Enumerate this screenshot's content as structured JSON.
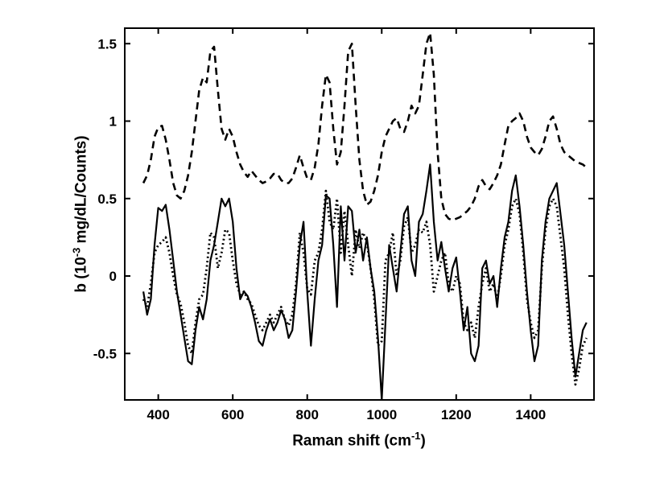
{
  "figure": {
    "background": "#ffffff",
    "xlabel": {
      "main": "Raman shift (cm",
      "sup": "-1",
      "end": ")"
    },
    "ylabel": {
      "main": "b (10",
      "sup": "-3",
      "end": " mg/dL/Counts)"
    }
  },
  "chart_data": {
    "type": "line",
    "title": "",
    "xlabel": "Raman shift (cm^-1)",
    "ylabel": "b (10^-3 mg/dL/Counts)",
    "xlim": [
      310,
      1570
    ],
    "ylim": [
      -0.8,
      1.6
    ],
    "xticks": [
      400,
      600,
      800,
      1000,
      1200,
      1400
    ],
    "xtick_labels": [
      "400",
      "600",
      "800",
      "1000",
      "1200",
      "1400"
    ],
    "yticks": [
      -0.5,
      0,
      0.5,
      1,
      1.5
    ],
    "ytick_labels": [
      "-0.5",
      "0",
      "0.5",
      "1",
      "1.5"
    ],
    "grid": false,
    "legend": "none",
    "line_color": "#000000",
    "x": [
      360,
      370,
      380,
      390,
      400,
      410,
      420,
      430,
      440,
      450,
      460,
      470,
      480,
      490,
      500,
      510,
      520,
      530,
      540,
      550,
      560,
      570,
      580,
      590,
      600,
      610,
      620,
      630,
      640,
      650,
      660,
      670,
      680,
      690,
      700,
      710,
      720,
      730,
      740,
      750,
      760,
      770,
      780,
      790,
      800,
      810,
      820,
      830,
      840,
      850,
      860,
      870,
      880,
      890,
      900,
      910,
      920,
      930,
      940,
      950,
      960,
      970,
      980,
      990,
      1000,
      1010,
      1020,
      1030,
      1040,
      1050,
      1060,
      1070,
      1080,
      1090,
      1100,
      1110,
      1120,
      1130,
      1140,
      1150,
      1160,
      1170,
      1180,
      1190,
      1200,
      1210,
      1220,
      1230,
      1240,
      1250,
      1260,
      1270,
      1280,
      1290,
      1300,
      1310,
      1320,
      1330,
      1340,
      1350,
      1360,
      1370,
      1380,
      1390,
      1400,
      1410,
      1420,
      1430,
      1440,
      1450,
      1460,
      1470,
      1480,
      1490,
      1500,
      1510,
      1520,
      1530,
      1540,
      1550
    ],
    "series": [
      {
        "name": "dashed-curve",
        "style": "dashed",
        "values": [
          0.6,
          0.65,
          0.75,
          0.9,
          0.96,
          0.97,
          0.88,
          0.75,
          0.6,
          0.52,
          0.5,
          0.55,
          0.65,
          0.8,
          1.0,
          1.2,
          1.28,
          1.25,
          1.45,
          1.48,
          1.2,
          0.95,
          0.88,
          0.95,
          0.9,
          0.8,
          0.72,
          0.67,
          0.64,
          0.68,
          0.65,
          0.62,
          0.6,
          0.61,
          0.63,
          0.66,
          0.66,
          0.62,
          0.6,
          0.6,
          0.63,
          0.7,
          0.78,
          0.7,
          0.63,
          0.62,
          0.7,
          0.85,
          1.1,
          1.3,
          1.25,
          0.95,
          0.72,
          0.8,
          1.1,
          1.45,
          1.5,
          1.1,
          0.75,
          0.55,
          0.46,
          0.48,
          0.55,
          0.65,
          0.8,
          0.9,
          0.95,
          1.0,
          1.02,
          0.95,
          0.93,
          1.0,
          1.1,
          1.05,
          1.1,
          1.3,
          1.5,
          1.57,
          1.3,
          0.8,
          0.5,
          0.4,
          0.37,
          0.36,
          0.37,
          0.38,
          0.4,
          0.42,
          0.45,
          0.5,
          0.58,
          0.62,
          0.58,
          0.56,
          0.6,
          0.65,
          0.72,
          0.85,
          0.97,
          1.0,
          1.02,
          1.05,
          1.0,
          0.9,
          0.83,
          0.8,
          0.78,
          0.82,
          0.9,
          1.0,
          1.03,
          0.95,
          0.85,
          0.8,
          0.78,
          0.76,
          0.74,
          0.73,
          0.72,
          0.7
        ]
      },
      {
        "name": "dotted-curve",
        "style": "dotted",
        "values": [
          -0.15,
          -0.2,
          -0.05,
          0.15,
          0.2,
          0.22,
          0.25,
          0.15,
          0.0,
          -0.12,
          -0.18,
          -0.3,
          -0.45,
          -0.5,
          -0.3,
          -0.15,
          -0.12,
          0.05,
          0.28,
          0.25,
          0.05,
          0.15,
          0.3,
          0.28,
          0.1,
          -0.05,
          -0.12,
          -0.1,
          -0.15,
          -0.18,
          -0.25,
          -0.32,
          -0.35,
          -0.3,
          -0.25,
          -0.3,
          -0.25,
          -0.2,
          -0.28,
          -0.32,
          -0.25,
          -0.05,
          0.28,
          0.15,
          -0.08,
          -0.12,
          0.1,
          0.15,
          0.3,
          0.55,
          0.35,
          0.3,
          0.5,
          0.15,
          0.42,
          0.2,
          0.0,
          0.3,
          0.18,
          0.28,
          0.22,
          0.05,
          -0.15,
          -0.45,
          -0.42,
          0.1,
          0.15,
          0.28,
          0.0,
          0.1,
          0.32,
          0.38,
          0.15,
          0.2,
          0.3,
          0.28,
          0.35,
          0.2,
          -0.1,
          0.0,
          0.1,
          0.15,
          -0.05,
          -0.1,
          0.0,
          -0.05,
          -0.3,
          -0.35,
          -0.3,
          -0.4,
          -0.2,
          -0.05,
          0.05,
          -0.1,
          -0.05,
          -0.15,
          0.0,
          0.2,
          0.3,
          0.45,
          0.5,
          0.4,
          0.15,
          -0.15,
          -0.3,
          -0.4,
          -0.35,
          0.05,
          0.3,
          0.45,
          0.5,
          0.45,
          0.25,
          0.05,
          -0.25,
          -0.5,
          -0.7,
          -0.6,
          -0.45,
          -0.4
        ]
      },
      {
        "name": "solid-curve",
        "style": "solid",
        "values": [
          -0.1,
          -0.25,
          -0.15,
          0.2,
          0.44,
          0.42,
          0.46,
          0.3,
          0.1,
          -0.1,
          -0.25,
          -0.4,
          -0.55,
          -0.57,
          -0.35,
          -0.2,
          -0.28,
          -0.15,
          0.1,
          0.2,
          0.35,
          0.5,
          0.45,
          0.5,
          0.35,
          0.05,
          -0.15,
          -0.1,
          -0.13,
          -0.2,
          -0.3,
          -0.42,
          -0.45,
          -0.35,
          -0.28,
          -0.35,
          -0.3,
          -0.22,
          -0.28,
          -0.4,
          -0.35,
          -0.1,
          0.2,
          0.35,
          -0.1,
          -0.45,
          -0.15,
          0.1,
          0.2,
          0.52,
          0.5,
          0.2,
          -0.2,
          0.45,
          0.1,
          0.45,
          0.42,
          0.15,
          0.3,
          0.1,
          0.25,
          0.05,
          -0.1,
          -0.4,
          -0.8,
          -0.3,
          0.2,
          0.05,
          -0.1,
          0.15,
          0.4,
          0.45,
          0.1,
          0.0,
          0.35,
          0.4,
          0.55,
          0.72,
          0.35,
          0.1,
          0.22,
          0.05,
          -0.1,
          0.05,
          0.12,
          -0.1,
          -0.35,
          -0.2,
          -0.5,
          -0.55,
          -0.45,
          0.05,
          0.1,
          -0.05,
          0.0,
          -0.2,
          0.05,
          0.25,
          0.35,
          0.55,
          0.65,
          0.45,
          0.2,
          -0.1,
          -0.35,
          -0.55,
          -0.45,
          0.1,
          0.35,
          0.5,
          0.55,
          0.6,
          0.4,
          0.2,
          -0.1,
          -0.4,
          -0.65,
          -0.5,
          -0.35,
          -0.3
        ]
      }
    ]
  }
}
